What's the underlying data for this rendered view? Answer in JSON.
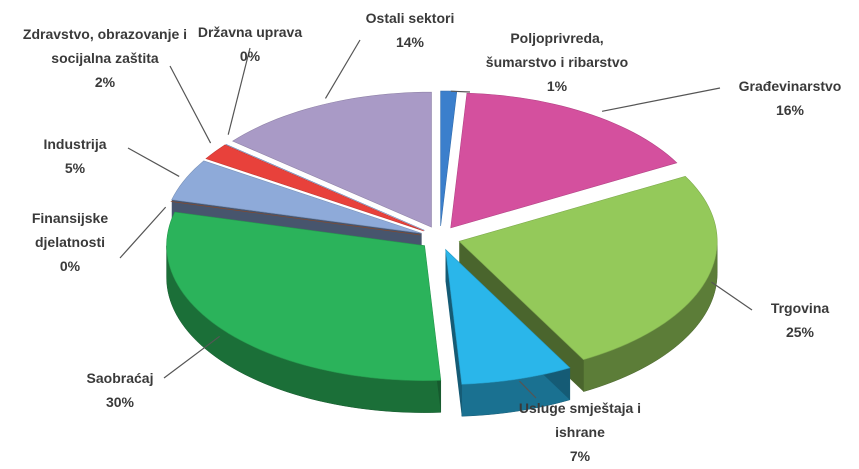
{
  "chart_data": {
    "type": "pie",
    "categories": [
      "Poljoprivreda, šumarstvo i ribarstvo",
      "Građevinarstvo",
      "Trgovina",
      "Usluge smještaja i ishrane",
      "Saobraćaj",
      "Finansijske djelatnosti",
      "Industrija",
      "Zdravstvo, obrazovanje i socijalna zaštita",
      "Državna uprava",
      "Ostali sektori"
    ],
    "values": [
      1,
      16,
      25,
      7,
      30,
      0,
      5,
      2,
      0,
      14
    ],
    "value_labels": [
      "1%",
      "16%",
      "25%",
      "7%",
      "30%",
      "0%",
      "5%",
      "2%",
      "0%",
      "14%"
    ],
    "colors": [
      "#3b7fcc",
      "#d4509e",
      "#94c95a",
      "#2ab6ea",
      "#2bb35b",
      "#a4552a",
      "#8eaad9",
      "#e8413b",
      "#6b8ed0",
      "#a99ac6"
    ]
  }
}
